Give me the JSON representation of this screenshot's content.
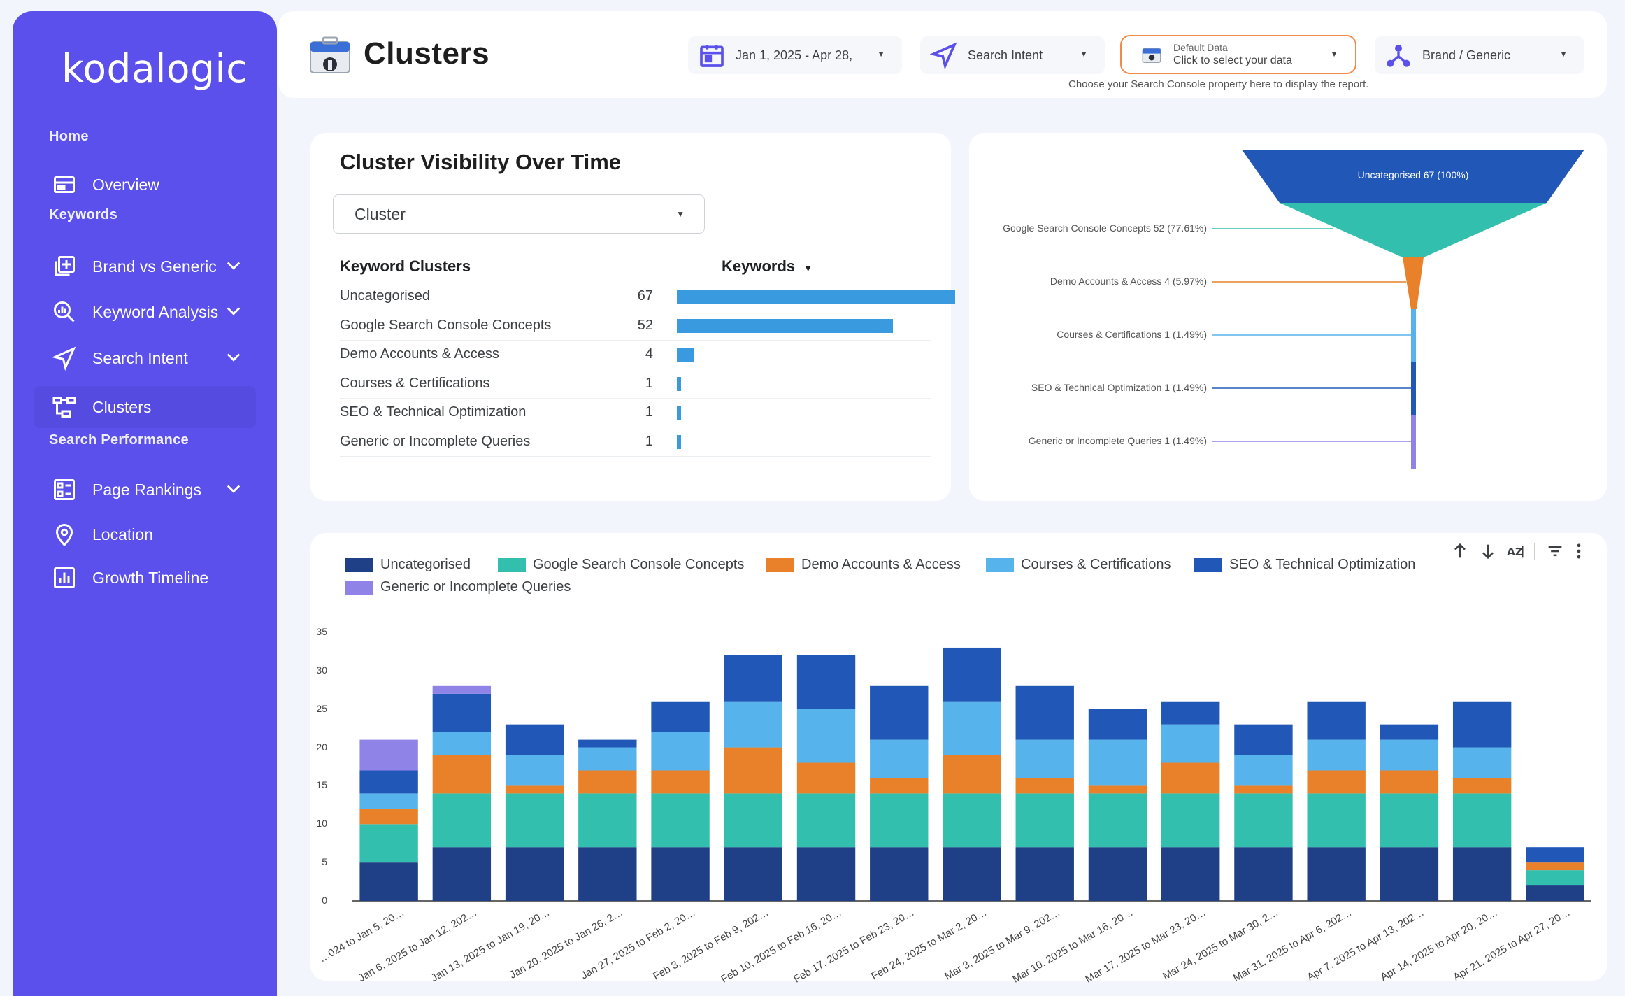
{
  "sidebar": {
    "logo": "kodalogic",
    "sections": {
      "home": "Home",
      "keywords": "Keywords",
      "search_performance": "Search Performance"
    },
    "items": {
      "overview": "Overview",
      "brand_vs_generic": "Brand vs Generic",
      "keyword_analysis": "Keyword Analysis",
      "search_intent": "Search Intent",
      "clusters": "Clusters",
      "page_rankings": "Page Rankings",
      "location": "Location",
      "growth_timeline": "Growth Timeline"
    }
  },
  "header": {
    "title": "Clusters",
    "date_range": "Jan 1, 2025 - Apr 28,",
    "search_intent": "Search Intent",
    "data_label": "Default Data",
    "data_value": "Click to select your data",
    "brand_filter": "Brand / Generic",
    "note": "Choose your Search Console property here to display the report."
  },
  "visibility": {
    "title": "Cluster Visibility Over Time",
    "select_value": "Cluster",
    "col_name": "Keyword Clusters",
    "col_value": "Keywords",
    "rows": [
      {
        "name": "Uncategorised",
        "value": "67",
        "frac": 1.0
      },
      {
        "name": "Google Search Console Concepts",
        "value": "52",
        "frac": 0.776
      },
      {
        "name": "Demo Accounts & Access",
        "value": "4",
        "frac": 0.06
      },
      {
        "name": "Courses & Certifications",
        "value": "1",
        "frac": 0.015
      },
      {
        "name": "SEO & Technical Optimization",
        "value": "1",
        "frac": 0.015
      },
      {
        "name": "Generic or Incomplete Queries",
        "value": "1",
        "frac": 0.015
      }
    ]
  },
  "funnel": {
    "top_label": "Uncategorised 67 (100%)",
    "labels": [
      "Google Search Console Concepts 52 (77.61%)",
      "Demo Accounts & Access 4 (5.97%)",
      "Courses & Certifications 1 (1.49%)",
      "SEO & Technical Optimization 1 (1.49%)",
      "Generic or Incomplete Queries 1 (1.49%)"
    ]
  },
  "colors": {
    "uncategorised": "#1f3f86",
    "gsc": "#33bfae",
    "demo": "#e9802a",
    "courses": "#56b3ec",
    "seo": "#2158b8",
    "generic": "#8f83e8",
    "sidebar": "#5b50ec"
  },
  "icons": [
    "calendar-icon",
    "navigation-icon",
    "database-icon",
    "hierarchy-icon",
    "arrow-up-icon",
    "arrow-down-icon",
    "sort-az-icon",
    "filter-icon",
    "more-icon"
  ],
  "chart_data": {
    "type": "bar",
    "stacked": true,
    "yticks": [
      "35",
      "30",
      "25",
      "20",
      "15",
      "10",
      "5",
      "0"
    ],
    "ylim": [
      0,
      35
    ],
    "categories": [
      "…024 to Jan 5, 20…",
      "Jan 6, 2025 to Jan 12, 202…",
      "Jan 13, 2025 to Jan 19, 20…",
      "Jan 20, 2025 to Jan 26, 2…",
      "Jan 27, 2025 to Feb 2, 20…",
      "Feb 3, 2025 to Feb 9, 202…",
      "Feb 10, 2025 to Feb 16, 20…",
      "Feb 17, 2025 to Feb 23, 20…",
      "Feb 24, 2025 to Mar 2, 20…",
      "Mar 3, 2025 to Mar 9, 202…",
      "Mar 10, 2025 to Mar 16, 20…",
      "Mar 17, 2025 to Mar 23, 20…",
      "Mar 24, 2025 to Mar 30, 2…",
      "Mar 31, 2025 to Apr 6, 202…",
      "Apr 7, 2025 to Apr 13, 202…",
      "Apr 14, 2025 to Apr 20, 20…",
      "Apr 21, 2025 to Apr 27, 20…"
    ],
    "series": [
      {
        "name": "Uncategorised",
        "values": [
          5,
          7,
          7,
          7,
          7,
          7,
          7,
          7,
          7,
          7,
          7,
          7,
          7,
          7,
          7,
          7,
          2
        ]
      },
      {
        "name": "Google Search Console Concepts",
        "values": [
          5,
          7,
          7,
          7,
          7,
          7,
          7,
          7,
          7,
          7,
          7,
          7,
          7,
          7,
          7,
          7,
          2
        ]
      },
      {
        "name": "Demo Accounts & Access",
        "values": [
          2,
          5,
          1,
          3,
          3,
          6,
          4,
          2,
          5,
          2,
          1,
          4,
          1,
          3,
          3,
          2,
          1
        ]
      },
      {
        "name": "Courses & Certifications",
        "values": [
          2,
          3,
          4,
          3,
          5,
          6,
          7,
          5,
          7,
          5,
          6,
          5,
          4,
          4,
          4,
          4,
          0
        ]
      },
      {
        "name": "SEO & Technical Optimization",
        "values": [
          3,
          5,
          4,
          1,
          4,
          6,
          7,
          7,
          7,
          7,
          4,
          3,
          4,
          5,
          2,
          6,
          2
        ]
      },
      {
        "name": "Generic or Incomplete Queries",
        "values": [
          4,
          1,
          0,
          0,
          0,
          0,
          0,
          0,
          0,
          0,
          0,
          0,
          0,
          0,
          0,
          0,
          0
        ]
      }
    ]
  }
}
